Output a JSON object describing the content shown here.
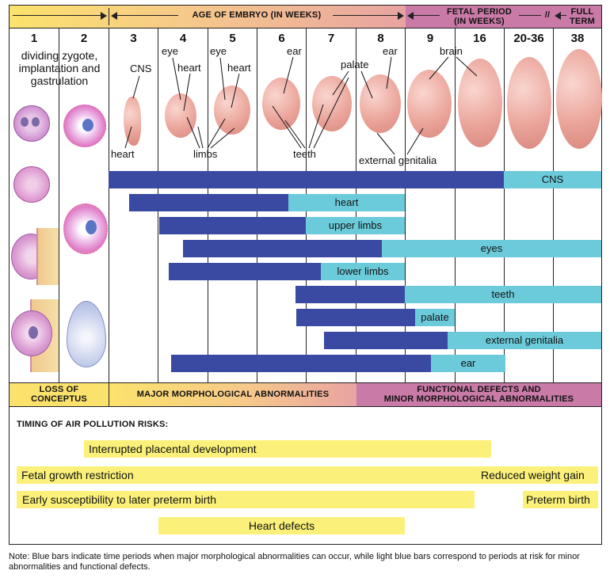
{
  "header": {
    "age_label": "AGE OF EMBRYO (IN WEEKS)",
    "fetal_label_line1": "FETAL PERIOD",
    "fetal_label_line2": "(IN WEEKS)",
    "break_mark": "//",
    "full_term_line1": "FULL",
    "full_term_line2": "TERM"
  },
  "weeks": [
    "1",
    "2",
    "3",
    "4",
    "5",
    "6",
    "7",
    "8",
    "9",
    "16",
    "20-36",
    "38"
  ],
  "week1_desc": "dividing zygote, implantation and gastrulation",
  "annotations": {
    "cns": "CNS",
    "heart_top3": "heart",
    "eye4": "eye",
    "heart4": "heart",
    "eye5": "eye",
    "heart5": "heart",
    "ear6": "ear",
    "palate": "palate",
    "ear8": "ear",
    "brain": "brain",
    "heart3": "heart",
    "limbs": "limbs",
    "teeth": "teeth",
    "external_genitalia": "external genitalia"
  },
  "organ_bars": [
    {
      "label": "CNS"
    },
    {
      "label": "heart"
    },
    {
      "label": "upper limbs"
    },
    {
      "label": "eyes"
    },
    {
      "label": "lower limbs"
    },
    {
      "label": "teeth"
    },
    {
      "label": "palate"
    },
    {
      "label": "external genitalia"
    },
    {
      "label": "ear"
    }
  ],
  "footer_bands": {
    "loss_line1": "LOSS OF",
    "loss_line2": "CONCEPTUS",
    "major": "MAJOR MORPHOLOGICAL ABNORMALITIES",
    "functional_line1": "FUNCTIONAL DEFECTS AND",
    "functional_line2": "MINOR MORPHOLOGICAL ABNORMALITIES"
  },
  "colors": {
    "major_bar": "#3a4aa2",
    "minor_bar": "#6ccbda",
    "yellow": "#fbf17a",
    "fetal_band": "#c97aa6"
  },
  "pollution": {
    "title": "TIMING OF AIR POLLUTION RISKS:",
    "risks": [
      {
        "label": "Interrupted placental development"
      },
      {
        "label": "Fetal growth restriction"
      },
      {
        "label": "Reduced weight gain"
      },
      {
        "label": "Early susceptibility to later preterm birth"
      },
      {
        "label": "Preterm birth"
      },
      {
        "label": "Heart defects"
      }
    ]
  },
  "note": "Note: Blue bars indicate time periods when major morphological abnormalities can occur, while light blue bars correspond to periods at risk for minor abnormalities and functional defects."
}
